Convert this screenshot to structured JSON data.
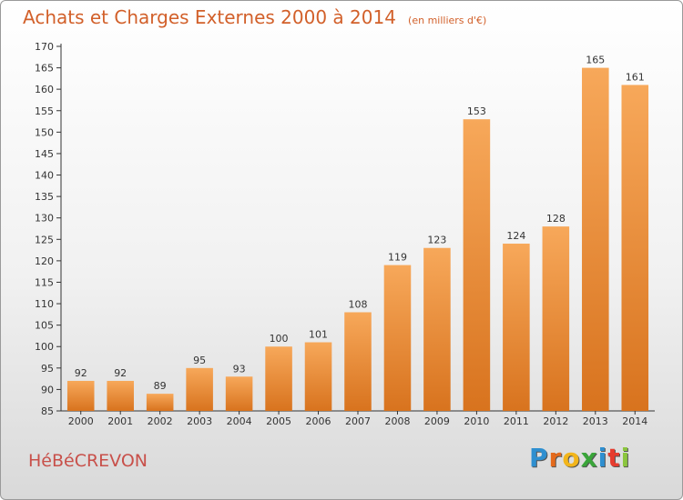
{
  "title": "Achats et Charges Externes 2000 à 2014",
  "subtitle": "(en milliers d'€)",
  "commune": "HéBéCREVON",
  "brand": {
    "letters": [
      "P",
      "r",
      "o",
      "x",
      "i",
      "t",
      "i"
    ],
    "colors": [
      "#2e8fd0",
      "#e46a1c",
      "#f2b51b",
      "#3aa53a",
      "#2e8fd0",
      "#e63c2e",
      "#8cc63f"
    ]
  },
  "chart_data": {
    "type": "bar",
    "title": "Achats et Charges Externes 2000 à 2014",
    "subtitle": "(en milliers d'€)",
    "categories": [
      "2000",
      "2001",
      "2002",
      "2003",
      "2004",
      "2005",
      "2006",
      "2007",
      "2008",
      "2009",
      "2010",
      "2011",
      "2012",
      "2013",
      "2014"
    ],
    "values": [
      92,
      92,
      89,
      95,
      93,
      100,
      101,
      108,
      119,
      123,
      153,
      124,
      128,
      165,
      161
    ],
    "ylim": [
      85,
      170
    ],
    "ytick_step": 5,
    "grid": false,
    "bar_color_top": "#f7a85a",
    "bar_color_bottom": "#d8731e"
  }
}
